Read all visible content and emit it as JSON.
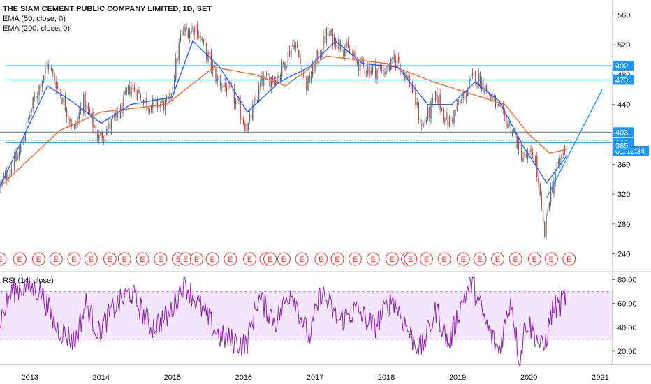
{
  "legend": {
    "title": "THE SIAM CEMENT PUBLIC COMPANY LIMITED, 1D, SET",
    "ema50": "EMA (50, close, 0)",
    "ema200": "EMA (200, close, 0)"
  },
  "rsi_label": "RSI (14, close)",
  "colors": {
    "candle_up": "#5d6b73",
    "candle_down": "#b34d47",
    "ema50": "#2962ff",
    "ema200": "#ef6c3a",
    "hline": "#2196f3",
    "rsi_line": "#8e24aa",
    "rsi_band": "#f3e5fb",
    "earnings": "#e53935"
  },
  "chart_data": [
    {
      "type": "candlestick",
      "title": "THE SIAM CEMENT PUBLIC COMPANY LIMITED, 1D, SET",
      "x_ticks": [
        "2013",
        "2014",
        "2015",
        "2016",
        "2017",
        "2018",
        "2019",
        "2020",
        "2021"
      ],
      "xlim": [
        "2012-08-01",
        "2021-03-01"
      ],
      "ylim": [
        220,
        580
      ],
      "y_ticks": [
        240,
        280,
        320,
        360,
        400,
        440,
        480,
        520,
        560
      ],
      "price_path": [
        {
          "date": "2012-08-01",
          "close": 330
        },
        {
          "date": "2012-11-01",
          "close": 370
        },
        {
          "date": "2013-01-15",
          "close": 440
        },
        {
          "date": "2013-04-01",
          "close": 495
        },
        {
          "date": "2013-06-15",
          "close": 450
        },
        {
          "date": "2013-08-15",
          "close": 405
        },
        {
          "date": "2013-10-01",
          "close": 445
        },
        {
          "date": "2013-12-20",
          "close": 395
        },
        {
          "date": "2014-04-01",
          "close": 425
        },
        {
          "date": "2014-06-01",
          "close": 465
        },
        {
          "date": "2014-09-01",
          "close": 440
        },
        {
          "date": "2014-12-15",
          "close": 440
        },
        {
          "date": "2015-02-15",
          "close": 535
        },
        {
          "date": "2015-05-01",
          "close": 545
        },
        {
          "date": "2015-08-15",
          "close": 475
        },
        {
          "date": "2015-11-01",
          "close": 455
        },
        {
          "date": "2016-01-20",
          "close": 408
        },
        {
          "date": "2016-04-01",
          "close": 470
        },
        {
          "date": "2016-07-01",
          "close": 480
        },
        {
          "date": "2016-09-15",
          "close": 525
        },
        {
          "date": "2016-11-20",
          "close": 465
        },
        {
          "date": "2017-03-01",
          "close": 535
        },
        {
          "date": "2017-05-15",
          "close": 520
        },
        {
          "date": "2017-09-01",
          "close": 490
        },
        {
          "date": "2017-12-15",
          "close": 485
        },
        {
          "date": "2018-03-01",
          "close": 500
        },
        {
          "date": "2018-05-15",
          "close": 460
        },
        {
          "date": "2018-07-01",
          "close": 410
        },
        {
          "date": "2018-09-15",
          "close": 450
        },
        {
          "date": "2018-11-15",
          "close": 415
        },
        {
          "date": "2019-02-01",
          "close": 450
        },
        {
          "date": "2019-04-01",
          "close": 480
        },
        {
          "date": "2019-06-01",
          "close": 460
        },
        {
          "date": "2019-08-01",
          "close": 430
        },
        {
          "date": "2019-10-01",
          "close": 410
        },
        {
          "date": "2019-12-01",
          "close": 370
        },
        {
          "date": "2020-02-01",
          "close": 370
        },
        {
          "date": "2020-03-20",
          "close": 262
        },
        {
          "date": "2020-04-15",
          "close": 318
        },
        {
          "date": "2020-06-01",
          "close": 360
        },
        {
          "date": "2020-07-15",
          "close": 390
        }
      ],
      "ema50_path": [
        {
          "date": "2012-08-01",
          "value": 330
        },
        {
          "date": "2013-04-01",
          "value": 465
        },
        {
          "date": "2013-08-01",
          "value": 445
        },
        {
          "date": "2014-01-01",
          "value": 415
        },
        {
          "date": "2014-06-01",
          "value": 440
        },
        {
          "date": "2015-01-01",
          "value": 450
        },
        {
          "date": "2015-04-15",
          "value": 525
        },
        {
          "date": "2015-09-01",
          "value": 490
        },
        {
          "date": "2016-01-20",
          "value": 430
        },
        {
          "date": "2016-07-01",
          "value": 470
        },
        {
          "date": "2016-12-01",
          "value": 490
        },
        {
          "date": "2017-04-15",
          "value": 525
        },
        {
          "date": "2017-09-01",
          "value": 495
        },
        {
          "date": "2018-03-01",
          "value": 490
        },
        {
          "date": "2018-08-01",
          "value": 440
        },
        {
          "date": "2018-12-01",
          "value": 440
        },
        {
          "date": "2019-04-01",
          "value": 470
        },
        {
          "date": "2019-08-01",
          "value": 445
        },
        {
          "date": "2019-12-01",
          "value": 385
        },
        {
          "date": "2020-04-01",
          "value": 335
        },
        {
          "date": "2020-07-15",
          "value": 372
        }
      ],
      "ema200_path": [
        {
          "date": "2012-08-01",
          "value": 330
        },
        {
          "date": "2013-06-01",
          "value": 405
        },
        {
          "date": "2014-01-01",
          "value": 430
        },
        {
          "date": "2014-12-01",
          "value": 440
        },
        {
          "date": "2015-08-01",
          "value": 490
        },
        {
          "date": "2016-03-01",
          "value": 480
        },
        {
          "date": "2016-08-01",
          "value": 465
        },
        {
          "date": "2017-03-01",
          "value": 505
        },
        {
          "date": "2018-01-01",
          "value": 495
        },
        {
          "date": "2018-09-01",
          "value": 470
        },
        {
          "date": "2019-03-01",
          "value": 455
        },
        {
          "date": "2019-09-01",
          "value": 440
        },
        {
          "date": "2020-01-01",
          "value": 400
        },
        {
          "date": "2020-04-15",
          "value": 375
        },
        {
          "date": "2020-07-15",
          "value": 380
        }
      ],
      "horizontal_lines": [
        492,
        473,
        403,
        389
      ],
      "dotted_lines": [
        392
      ],
      "price_labels": [
        {
          "value": 492,
          "text": "492",
          "style": "outline"
        },
        {
          "value": 473,
          "text": "473",
          "style": "outline"
        },
        {
          "value": 403,
          "text": "403",
          "style": "outline"
        },
        {
          "value": 389,
          "text": "389",
          "style": "outline"
        },
        {
          "value": 378,
          "text": "01:11:34",
          "style": "filled"
        },
        {
          "value": 385,
          "text": "385",
          "style": "outline"
        }
      ],
      "trend_line": [
        {
          "date": "2020-04-01",
          "value": 315
        },
        {
          "date": "2021-01-10",
          "value": 460
        }
      ],
      "earnings_markers_dates": [
        "2012-08-01",
        "2012-11-10",
        "2013-02-15",
        "2013-05-15",
        "2013-08-15",
        "2013-11-10",
        "2014-02-15",
        "2014-05-01",
        "2014-08-01",
        "2014-11-01",
        "2015-02-01",
        "2015-03-10",
        "2015-05-05",
        "2015-07-25",
        "2015-10-25",
        "2016-02-01",
        "2016-04-25",
        "2016-05-15",
        "2016-07-25",
        "2016-10-25",
        "2017-02-01",
        "2017-04-25",
        "2017-07-25",
        "2017-10-25",
        "2018-01-30",
        "2018-04-20",
        "2018-05-05",
        "2018-07-25",
        "2018-10-25",
        "2019-01-30",
        "2019-04-25",
        "2019-07-25",
        "2019-10-25",
        "2020-01-30",
        "2020-04-25",
        "2020-07-25"
      ],
      "earnings_marker_text": "E"
    },
    {
      "type": "line",
      "title": "RSI (14, close)",
      "ylim": [
        10,
        85
      ],
      "y_ticks": [
        "20.00",
        "40.00",
        "60.00",
        "80.00"
      ],
      "band": [
        30,
        70
      ],
      "midline": 50,
      "rsi_path": [
        {
          "date": "2012-08-01",
          "value": 45
        },
        {
          "date": "2012-10-01",
          "value": 70
        },
        {
          "date": "2012-12-15",
          "value": 75
        },
        {
          "date": "2013-03-01",
          "value": 70
        },
        {
          "date": "2013-05-15",
          "value": 40
        },
        {
          "date": "2013-08-20",
          "value": 28
        },
        {
          "date": "2013-10-15",
          "value": 60
        },
        {
          "date": "2013-12-20",
          "value": 35
        },
        {
          "date": "2014-03-01",
          "value": 55
        },
        {
          "date": "2014-06-01",
          "value": 70
        },
        {
          "date": "2014-09-15",
          "value": 40
        },
        {
          "date": "2014-12-15",
          "value": 50
        },
        {
          "date": "2015-03-01",
          "value": 78
        },
        {
          "date": "2015-06-01",
          "value": 55
        },
        {
          "date": "2015-09-01",
          "value": 32
        },
        {
          "date": "2016-01-15",
          "value": 25
        },
        {
          "date": "2016-03-15",
          "value": 65
        },
        {
          "date": "2016-06-15",
          "value": 45
        },
        {
          "date": "2016-09-01",
          "value": 72
        },
        {
          "date": "2016-12-01",
          "value": 30
        },
        {
          "date": "2017-02-01",
          "value": 70
        },
        {
          "date": "2017-05-01",
          "value": 45
        },
        {
          "date": "2017-08-01",
          "value": 55
        },
        {
          "date": "2017-11-01",
          "value": 40
        },
        {
          "date": "2018-02-01",
          "value": 65
        },
        {
          "date": "2018-05-15",
          "value": 30
        },
        {
          "date": "2018-07-01",
          "value": 22
        },
        {
          "date": "2018-09-15",
          "value": 55
        },
        {
          "date": "2018-11-15",
          "value": 25
        },
        {
          "date": "2019-02-01",
          "value": 65
        },
        {
          "date": "2019-03-15",
          "value": 78
        },
        {
          "date": "2019-06-01",
          "value": 40
        },
        {
          "date": "2019-08-01",
          "value": 20
        },
        {
          "date": "2019-10-01",
          "value": 65
        },
        {
          "date": "2019-11-15",
          "value": 10
        },
        {
          "date": "2019-12-15",
          "value": 45
        },
        {
          "date": "2020-01-20",
          "value": 38
        },
        {
          "date": "2020-03-15",
          "value": 20
        },
        {
          "date": "2020-05-01",
          "value": 55
        },
        {
          "date": "2020-06-15",
          "value": 60
        },
        {
          "date": "2020-07-15",
          "value": 69
        }
      ]
    }
  ]
}
